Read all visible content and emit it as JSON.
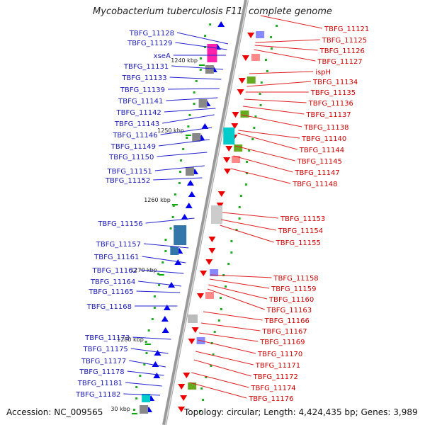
{
  "title": "Mycobacterium tuberculosis F11, complete genome",
  "footer": {
    "accession": "Accession: NC_009565",
    "info": "Topology: circular; Length: 4,424,435 bp; Genes: 3,989"
  },
  "colors": {
    "left_label": "#1a1ab4",
    "right_label": "#cc0000",
    "left_arrow": "#0000ee",
    "right_arrow": "#ee0000",
    "axis": "#999999",
    "kbp_tick": "#00aa00"
  },
  "kbp_marks": [
    "1240 kbp",
    "1250 kbp",
    "1260 kbp",
    "1270 kbp",
    "1280 kbp",
    "30 kbp"
  ],
  "left_genes": [
    "TBFG_11128",
    "TBFG_11129",
    "xseA",
    "TBFG_11131",
    "TBFG_11133",
    "TBFG_11139",
    "TBFG_11141",
    "TBFG_11142",
    "TBFG_11143",
    "TBFG_11146",
    "TBFG_11149",
    "TBFG_11150",
    "TBFG_11151",
    "TBFG_11152",
    "TBFG_11156",
    "TBFG_11157",
    "TBFG_11161",
    "TBFG_11162",
    "TBFG_11164",
    "TBFG_11165",
    "TBFG_11168",
    "TBFG_11173",
    "TBFG_11175",
    "TBFG_11177",
    "TBFG_11178",
    "TBFG_11181",
    "TBFG_11182"
  ],
  "right_genes": [
    "TBFG_11121",
    "TBFG_11125",
    "TBFG_11126",
    "TBFG_11127",
    "ispH",
    "TBFG_11134",
    "TBFG_11135",
    "TBFG_11136",
    "TBFG_11137",
    "TBFG_11138",
    "TBFG_11140",
    "TBFG_11144",
    "TBFG_11145",
    "TBFG_11147",
    "TBFG_11148",
    "TBFG_11153",
    "TBFG_11154",
    "TBFG_11155",
    "TBFG_11158",
    "TBFG_11159",
    "TBFG_11160",
    "TBFG_11163",
    "TBFG_11166",
    "TBFG_11167",
    "TBFG_11169",
    "TBFG_11170",
    "TBFG_11171",
    "TBFG_11172",
    "TBFG_11174",
    "TBFG_11176"
  ]
}
